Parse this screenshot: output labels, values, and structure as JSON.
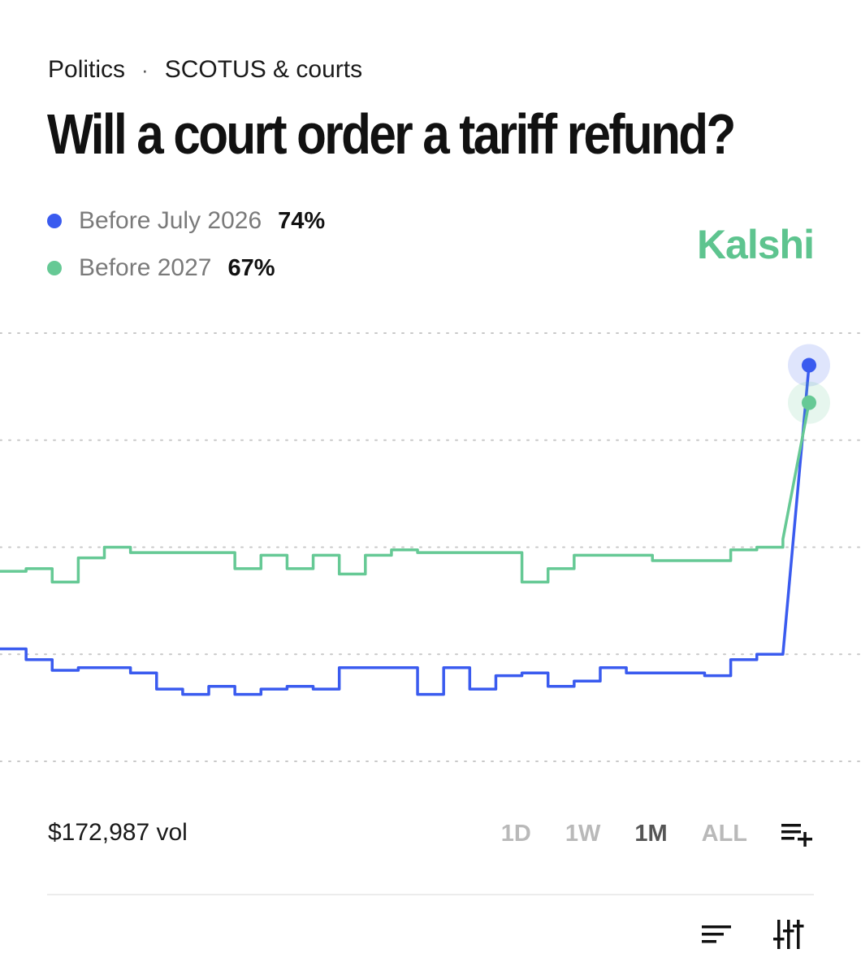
{
  "breadcrumb": {
    "category": "Politics",
    "separator": "·",
    "subcategory": "SCOTUS & courts"
  },
  "title": "Will a court order a tariff refund?",
  "brand": {
    "name": "Kalshi",
    "color": "#5ec48f"
  },
  "legend": [
    {
      "name": "Before July 2026",
      "value": "74%",
      "color": "#3a5bef"
    },
    {
      "name": "Before 2027",
      "value": "67%",
      "color": "#66c995"
    }
  ],
  "volume": "$172,987 vol",
  "time_ranges": [
    {
      "label": "1D",
      "active": false
    },
    {
      "label": "1W",
      "active": false
    },
    {
      "label": "1M",
      "active": true
    },
    {
      "label": "ALL",
      "active": false
    }
  ],
  "icons": {
    "add_to_list": "playlist-add-icon",
    "sort": "sort-icon",
    "filters": "sliders-icon"
  },
  "chart_data": {
    "type": "line",
    "step": true,
    "grid": true,
    "x": [
      0,
      1,
      2,
      3,
      4,
      5,
      6,
      7,
      8,
      9,
      10,
      11,
      12,
      13,
      14,
      15,
      16,
      17,
      18,
      19,
      20,
      21,
      22,
      23,
      24,
      25,
      26,
      27,
      28,
      29,
      30,
      31
    ],
    "series": [
      {
        "name": "Before July 2026",
        "color": "#3a5bef",
        "values": [
          21,
          19,
          17,
          17.5,
          17.5,
          16.5,
          13.5,
          12.5,
          14,
          12.5,
          13.5,
          14,
          13.5,
          17.5,
          17.5,
          17.5,
          12.5,
          17.5,
          13.5,
          16,
          16.5,
          14,
          15,
          17.5,
          16.5,
          16.5,
          16.5,
          16,
          19,
          20,
          20,
          74
        ]
      },
      {
        "name": "Before 2027",
        "color": "#66c995",
        "values": [
          35.5,
          36,
          33.5,
          38,
          40,
          39,
          39,
          39,
          39,
          36,
          38.5,
          36,
          38.5,
          35,
          38.5,
          39.5,
          39,
          39,
          39,
          39,
          33.5,
          36,
          38.5,
          38.5,
          38.5,
          37.5,
          37.5,
          37.5,
          39.5,
          40,
          41.5,
          67
        ]
      }
    ],
    "ylim": [
      0,
      80
    ]
  }
}
